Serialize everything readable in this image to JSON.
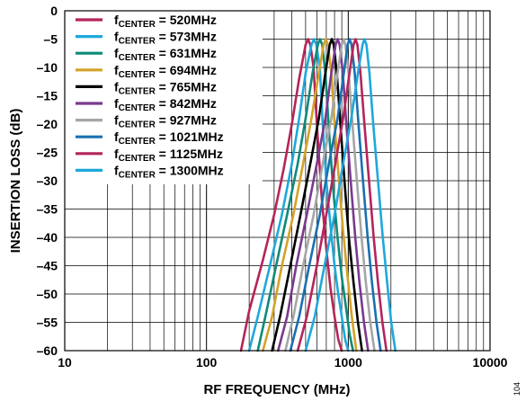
{
  "chart_data": {
    "type": "line",
    "xlabel": "RF FREQUENCY (MHz)",
    "ylabel": "INSERTION LOSS (dB)",
    "xscale": "log",
    "xlim": [
      10,
      10000
    ],
    "ylim": [
      -60,
      0
    ],
    "x_ticks": [
      10,
      100,
      1000,
      10000
    ],
    "x_tick_labels": [
      "10",
      "100",
      "1000",
      "10000"
    ],
    "y_ticks": [
      0,
      -5,
      -10,
      -15,
      -20,
      -25,
      -30,
      -35,
      -40,
      -45,
      -50,
      -55,
      -60
    ],
    "y_tick_labels": [
      "0",
      "–5",
      "–10",
      "–15",
      "–20",
      "–25",
      "–30",
      "–35",
      "–40",
      "–45",
      "–50",
      "–55",
      "–60"
    ],
    "grid": true,
    "legend_position": "top-left",
    "figure_id": "104",
    "series": [
      {
        "name": "fCENTER = 520MHz",
        "legend_main": "f",
        "legend_sub": "CENTER",
        "legend_rest": " = 520MHz",
        "color": "#b5245a",
        "x": [
          175,
          200,
          250,
          300,
          350,
          400,
          450,
          500,
          520,
          540,
          570,
          600,
          650,
          700,
          750,
          800,
          850,
          900
        ],
        "y": [
          -60,
          -53,
          -44,
          -36,
          -28,
          -20,
          -12,
          -6,
          -5,
          -6,
          -10,
          -20,
          -33,
          -42,
          -49,
          -54,
          -58,
          -60
        ]
      },
      {
        "name": "fCENTER = 573MHz",
        "legend_main": "f",
        "legend_sub": "CENTER",
        "legend_rest": " = 573MHz",
        "color": "#1ea8dc",
        "x": [
          200,
          230,
          280,
          340,
          400,
          450,
          500,
          550,
          573,
          595,
          630,
          660,
          700,
          750,
          800,
          850,
          900,
          950,
          1000
        ],
        "y": [
          -60,
          -54,
          -45,
          -36,
          -27,
          -19,
          -11,
          -6,
          -5,
          -6,
          -10,
          -20,
          -30,
          -38,
          -45,
          -50,
          -54,
          -58,
          -60
        ]
      },
      {
        "name": "fCENTER = 631MHz",
        "legend_main": "f",
        "legend_sub": "CENTER",
        "legend_rest": " = 631MHz",
        "color": "#0e8a78",
        "x": [
          230,
          260,
          310,
          370,
          440,
          500,
          560,
          610,
          631,
          655,
          690,
          730,
          780,
          840,
          900,
          960,
          1020,
          1080
        ],
        "y": [
          -60,
          -54,
          -45,
          -36,
          -27,
          -19,
          -11,
          -6,
          -5,
          -6,
          -11,
          -21,
          -31,
          -40,
          -47,
          -52,
          -57,
          -60
        ]
      },
      {
        "name": "fCENTER = 694MHz",
        "legend_main": "f",
        "legend_sub": "CENTER",
        "legend_rest": " = 694MHz",
        "color": "#d4a228",
        "x": [
          250,
          290,
          340,
          410,
          480,
          550,
          620,
          670,
          694,
          720,
          760,
          800,
          860,
          920,
          990,
          1060,
          1140
        ],
        "y": [
          -60,
          -54,
          -45,
          -36,
          -27,
          -19,
          -11,
          -6,
          -5,
          -6,
          -11,
          -20,
          -30,
          -39,
          -47,
          -54,
          -60
        ]
      },
      {
        "name": "fCENTER = 765MHz",
        "legend_main": "f",
        "legend_sub": "CENTER",
        "legend_rest": " = 765MHz",
        "color": "#000000",
        "x": [
          290,
          330,
          390,
          460,
          540,
          620,
          690,
          740,
          765,
          790,
          830,
          880,
          940,
          1010,
          1090,
          1170,
          1250
        ],
        "y": [
          -60,
          -54,
          -45,
          -36,
          -27,
          -19,
          -11,
          -6,
          -5,
          -6,
          -11,
          -20,
          -30,
          -40,
          -48,
          -55,
          -60
        ]
      },
      {
        "name": "fCENTER = 842MHz",
        "legend_main": "f",
        "legend_sub": "CENTER",
        "legend_rest": " = 842MHz",
        "color": "#7a3a8e",
        "x": [
          320,
          370,
          430,
          510,
          600,
          690,
          760,
          815,
          842,
          870,
          915,
          970,
          1040,
          1120,
          1200,
          1290,
          1380
        ],
        "y": [
          -60,
          -54,
          -45,
          -36,
          -27,
          -19,
          -11,
          -6,
          -5,
          -6,
          -11,
          -20,
          -30,
          -40,
          -48,
          -55,
          -60
        ]
      },
      {
        "name": "fCENTER = 927MHz",
        "legend_main": "f",
        "legend_sub": "CENTER",
        "legend_rest": " = 927MHz",
        "color": "#a6a6a6",
        "x": [
          360,
          410,
          480,
          570,
          660,
          760,
          840,
          900,
          927,
          955,
          1005,
          1070,
          1150,
          1240,
          1330,
          1430,
          1530
        ],
        "y": [
          -60,
          -54,
          -45,
          -36,
          -27,
          -19,
          -11,
          -6,
          -5,
          -6,
          -11,
          -20,
          -30,
          -40,
          -48,
          -55,
          -60
        ]
      },
      {
        "name": "fCENTER = 1021MHz",
        "legend_main": "f",
        "legend_sub": "CENTER",
        "legend_rest": " = 1021MHz",
        "color": "#1a70b0",
        "x": [
          390,
          450,
          530,
          630,
          730,
          840,
          930,
          990,
          1021,
          1055,
          1110,
          1180,
          1270,
          1370,
          1470,
          1580,
          1690
        ],
        "y": [
          -60,
          -54,
          -45,
          -36,
          -27,
          -19,
          -11,
          -6,
          -5,
          -6,
          -11,
          -20,
          -30,
          -40,
          -48,
          -55,
          -60
        ]
      },
      {
        "name": "fCENTER = 1125MHz",
        "legend_main": "f",
        "legend_sub": "CENTER",
        "legend_rest": " = 1125MHz",
        "color": "#b5245a",
        "x": [
          440,
          510,
          600,
          700,
          810,
          920,
          1020,
          1090,
          1125,
          1160,
          1220,
          1300,
          1400,
          1510,
          1620,
          1740,
          1860
        ],
        "y": [
          -60,
          -54,
          -45,
          -36,
          -27,
          -19,
          -11,
          -6,
          -5,
          -6,
          -11,
          -20,
          -30,
          -40,
          -48,
          -55,
          -60
        ]
      },
      {
        "name": "fCENTER = 1300MHz",
        "legend_main": "f",
        "legend_sub": "CENTER",
        "legend_rest": " = 1300MHz",
        "color": "#1ea8dc",
        "x": [
          500,
          580,
          680,
          800,
          920,
          1050,
          1170,
          1260,
          1300,
          1345,
          1410,
          1500,
          1620,
          1750,
          1880,
          2010,
          2150
        ],
        "y": [
          -60,
          -54,
          -45,
          -36,
          -27,
          -19,
          -11,
          -6,
          -5,
          -6,
          -11,
          -20,
          -30,
          -40,
          -48,
          -55,
          -60
        ]
      }
    ]
  }
}
